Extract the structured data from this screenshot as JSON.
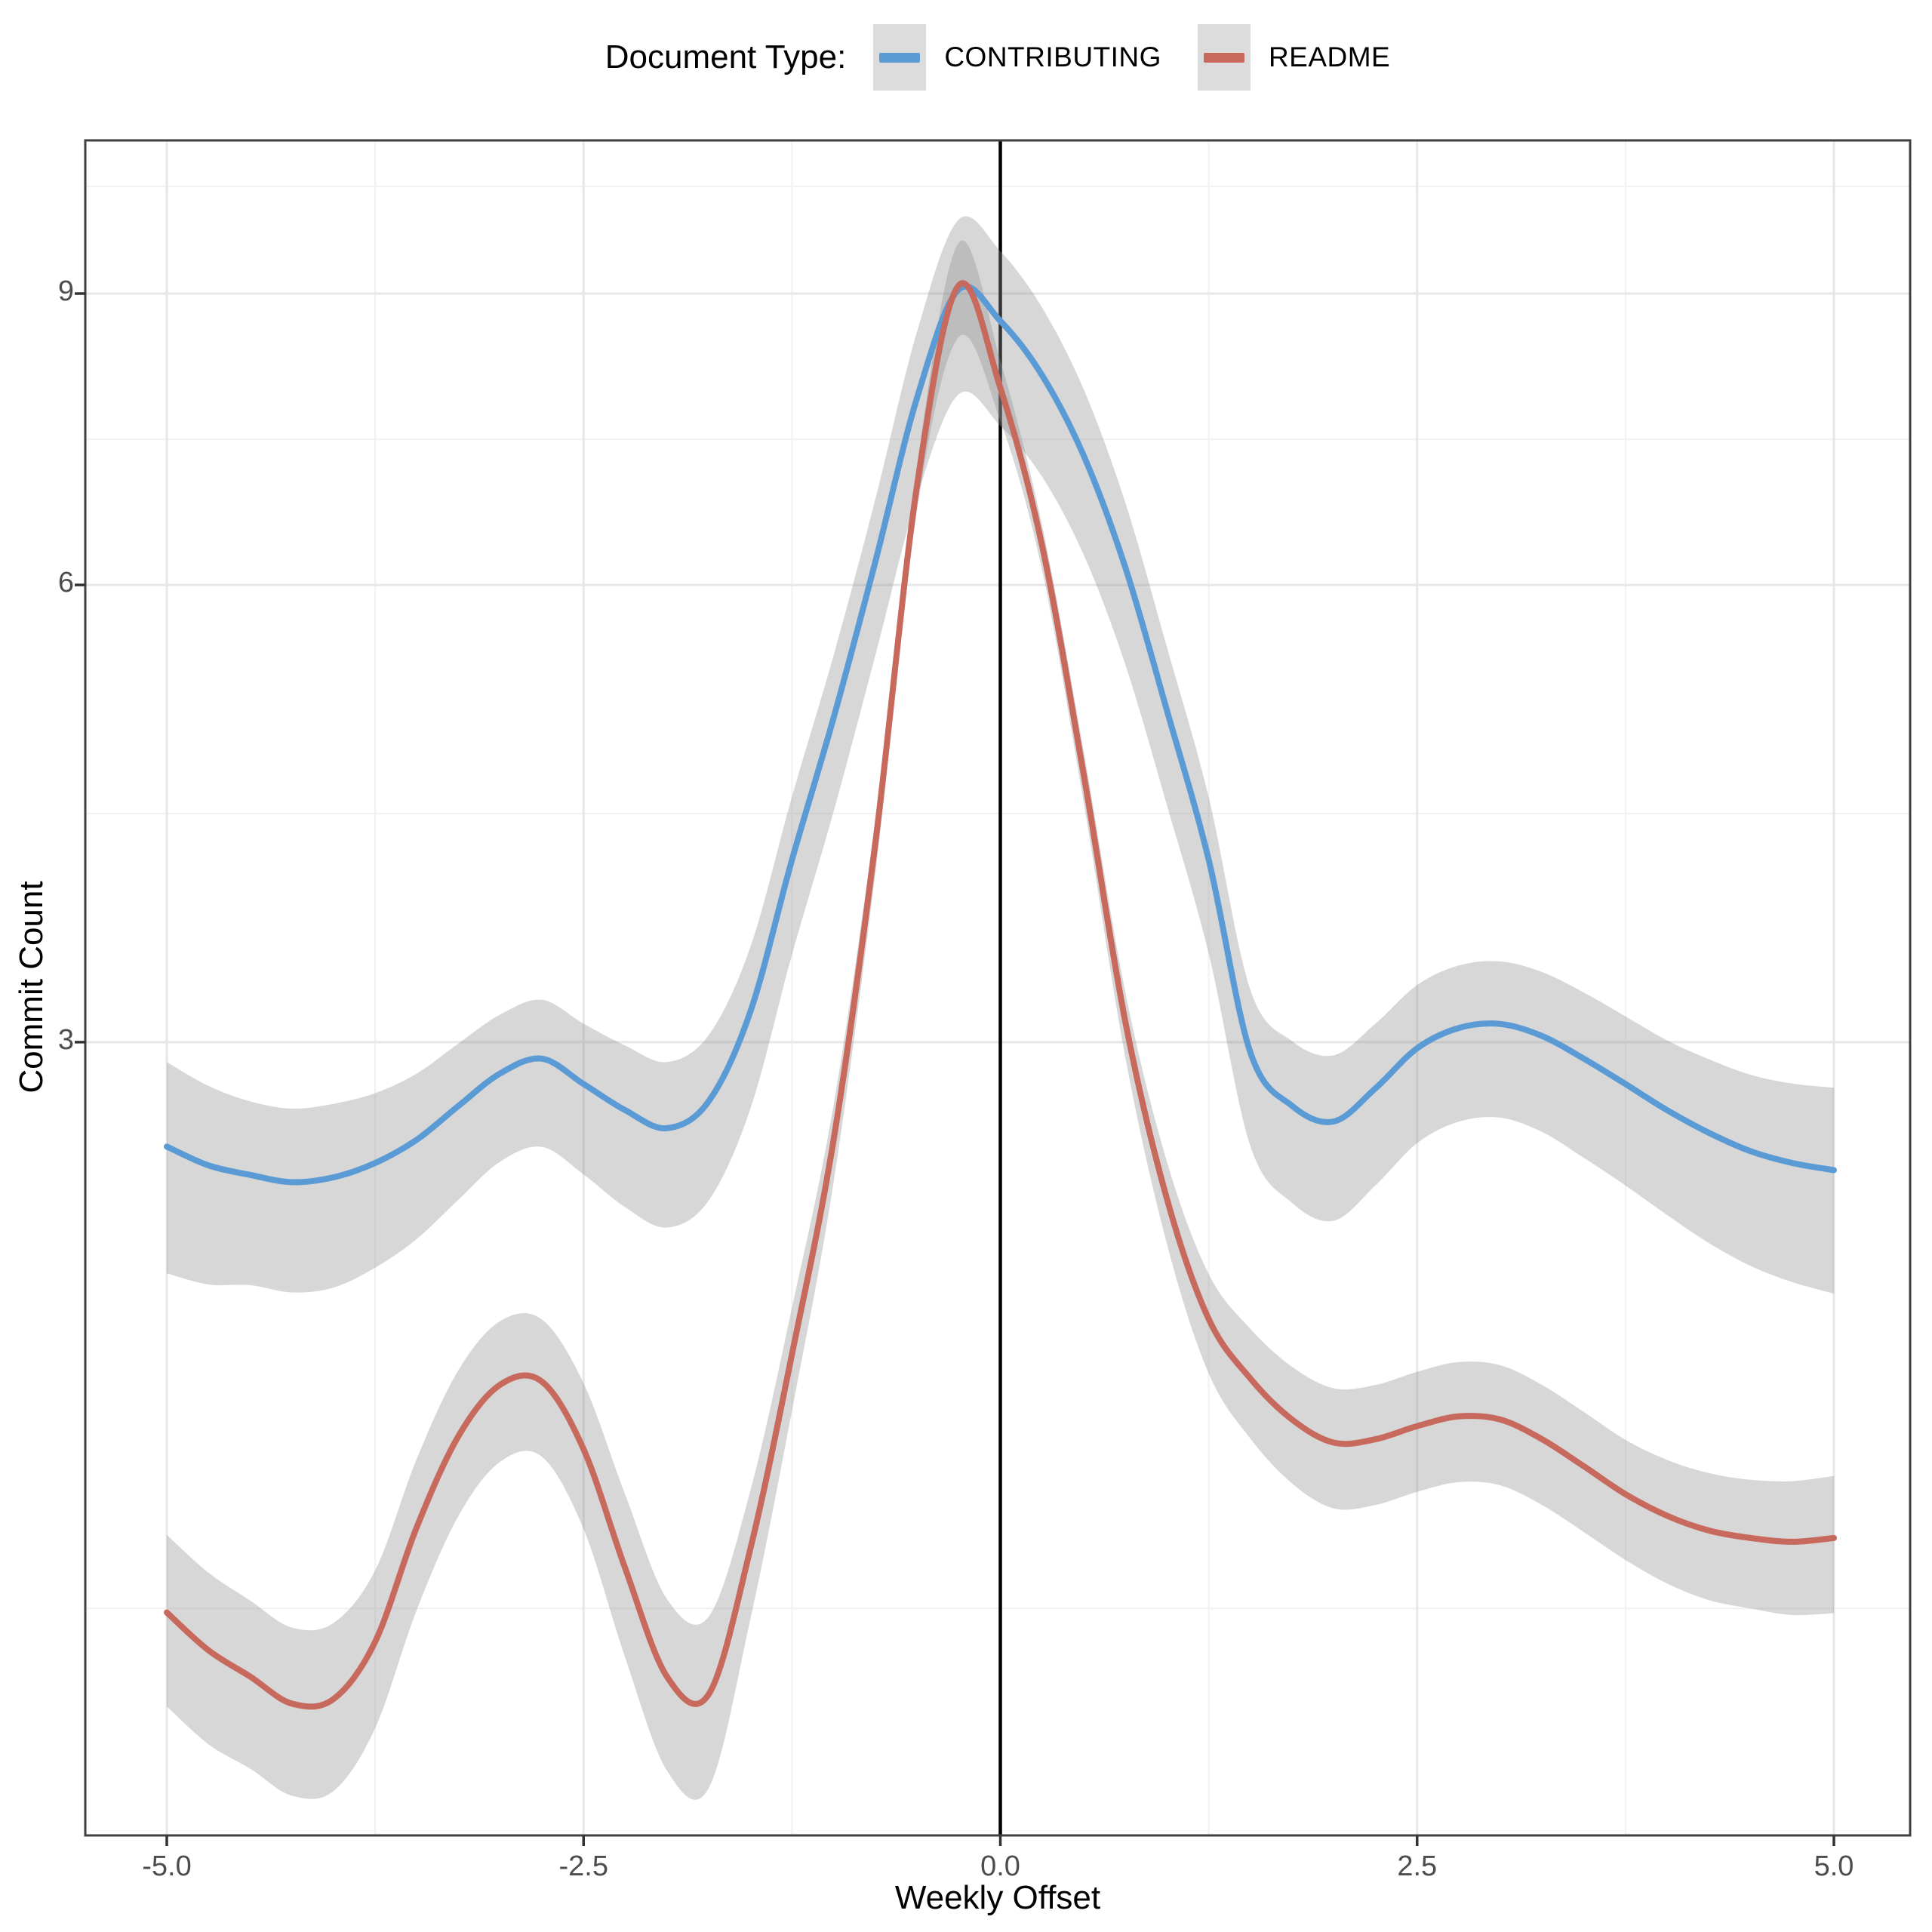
{
  "legend": {
    "title": "Document Type:",
    "key_fill": "#DCDCDC"
  },
  "chart_data": {
    "type": "line",
    "title": "",
    "xlabel": "Weekly Offset",
    "ylabel": "Commit Count",
    "x_ticks": [
      -5.0,
      -2.5,
      0.0,
      2.5,
      5.0
    ],
    "x_tick_labels": [
      "-5.0",
      "-2.5",
      "0.0",
      "2.5",
      "5.0"
    ],
    "y_ticks": [
      3,
      6,
      9
    ],
    "y_tick_labels": [
      "3",
      "6",
      "9"
    ],
    "y_scale": "log1p",
    "y_break_seq_for_minors": [
      0,
      3,
      6,
      9,
      12
    ],
    "xlim": [
      -5.5,
      5.5
    ],
    "grid": "on",
    "legend_position": "top",
    "reference_vline_x": 0,
    "vline_color": "#000000",
    "ribbon_fill": "#909090",
    "ribbon_opacity": 0.36,
    "x": [
      -5,
      -4.75,
      -4.5,
      -4.25,
      -4,
      -3.75,
      -3.5,
      -3.25,
      -3,
      -2.75,
      -2.5,
      -2.25,
      -2,
      -1.75,
      -1.5,
      -1.25,
      -1,
      -0.75,
      -0.5,
      -0.25,
      0,
      0.25,
      0.5,
      0.75,
      1,
      1.25,
      1.5,
      1.75,
      2,
      2.25,
      2.5,
      2.75,
      3,
      3.25,
      3.5,
      3.75,
      4,
      4.25,
      4.5,
      4.75,
      5
    ],
    "series": [
      {
        "name": "CONTRIBUTING",
        "color": "#5B9BD5",
        "values": [
          2.52,
          2.44,
          2.4,
          2.37,
          2.39,
          2.45,
          2.55,
          2.7,
          2.85,
          2.92,
          2.8,
          2.68,
          2.6,
          2.72,
          3.15,
          4.0,
          4.95,
          6.2,
          7.8,
          9.05,
          8.67,
          8.05,
          7.2,
          6.15,
          5.0,
          4.0,
          2.95,
          2.7,
          2.63,
          2.78,
          2.97,
          3.07,
          3.09,
          3.03,
          2.92,
          2.8,
          2.68,
          2.58,
          2.5,
          2.45,
          2.42
        ],
        "spread": [
          0.115,
          0.108,
          0.1,
          0.1,
          0.1,
          0.095,
          0.09,
          0.085,
          0.08,
          0.08,
          0.082,
          0.088,
          0.09,
          0.09,
          0.088,
          0.086,
          0.085,
          0.085,
          0.09,
          0.095,
          0.095,
          0.092,
          0.09,
          0.088,
          0.086,
          0.085,
          0.085,
          0.088,
          0.09,
          0.088,
          0.086,
          0.085,
          0.085,
          0.087,
          0.09,
          0.092,
          0.095,
          0.1,
          0.104,
          0.108,
          0.112
        ],
        "spread_up_factor": 0.9,
        "spread_down_factor": 1.35
      },
      {
        "name": "README",
        "color": "#C8695D",
        "values": [
          0.99,
          0.9,
          0.84,
          0.78,
          0.79,
          0.92,
          1.21,
          1.47,
          1.63,
          1.64,
          1.43,
          1.1,
          0.84,
          0.8,
          1.15,
          1.73,
          2.55,
          4.1,
          6.9,
          9.1,
          7.91,
          6.35,
          4.55,
          3.1,
          2.3,
          1.85,
          1.65,
          1.52,
          1.45,
          1.46,
          1.5,
          1.53,
          1.52,
          1.46,
          1.38,
          1.3,
          1.24,
          1.2,
          1.18,
          1.17,
          1.18
        ],
        "spread": [
          0.1,
          0.1,
          0.098,
          0.098,
          0.098,
          0.092,
          0.088,
          0.085,
          0.082,
          0.08,
          0.085,
          0.095,
          0.1,
          0.1,
          0.075,
          0.06,
          0.045,
          0.032,
          0.026,
          0.055,
          0.035,
          0.026,
          0.03,
          0.038,
          0.048,
          0.058,
          0.064,
          0.068,
          0.07,
          0.07,
          0.07,
          0.07,
          0.07,
          0.07,
          0.07,
          0.07,
          0.072,
          0.074,
          0.075,
          0.078,
          0.08
        ],
        "spread_up_factor": 0.95,
        "spread_down_factor": 1.15
      }
    ]
  }
}
